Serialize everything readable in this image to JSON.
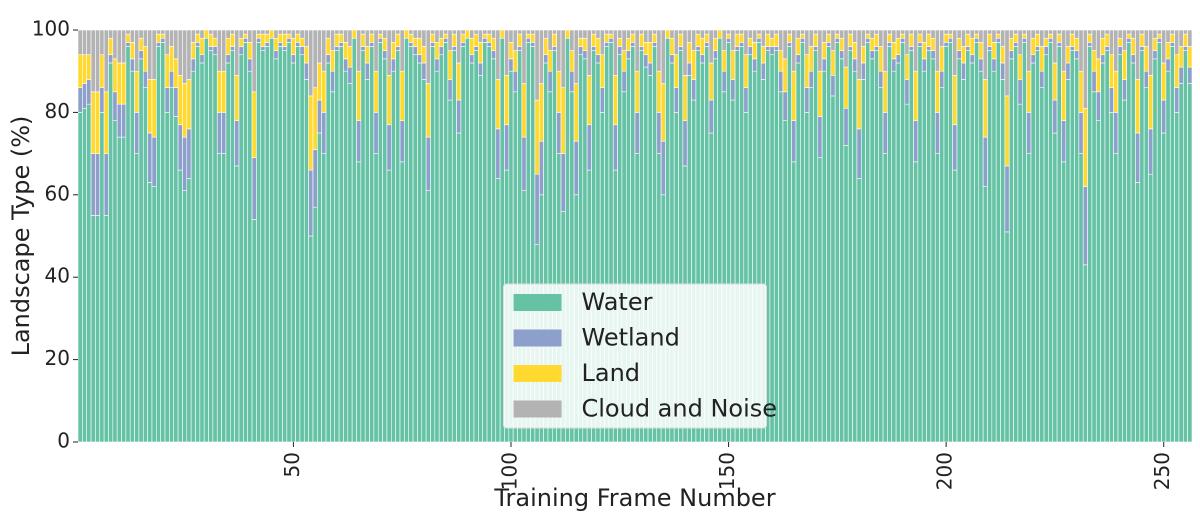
{
  "chart_data": {
    "type": "stacked_bar",
    "xlabel": "Training Frame Number",
    "ylabel": "Landscape Type (%)",
    "x": [
      1,
      2,
      3,
      4,
      5,
      6,
      7,
      8,
      9,
      10,
      11,
      12,
      13,
      14,
      15,
      16,
      17,
      18,
      19,
      20,
      21,
      22,
      23,
      24,
      25,
      26,
      27,
      28,
      29,
      30,
      31,
      32,
      33,
      34,
      35,
      36,
      37,
      38,
      39,
      40,
      41,
      42,
      43,
      44,
      45,
      46,
      47,
      48,
      49,
      50,
      51,
      52,
      53,
      54,
      55,
      56,
      57,
      58,
      59,
      60,
      61,
      62,
      63,
      64,
      65,
      66,
      67,
      68,
      69,
      70,
      71,
      72,
      73,
      74,
      75,
      76,
      77,
      78,
      79,
      80,
      81,
      82,
      83,
      84,
      85,
      86,
      87,
      88,
      89,
      90,
      91,
      92,
      93,
      94,
      95,
      96,
      97,
      98,
      99,
      100,
      101,
      102,
      103,
      104,
      105,
      106,
      107,
      108,
      109,
      110,
      111,
      112,
      113,
      114,
      115,
      116,
      117,
      118,
      119,
      120,
      121,
      122,
      123,
      124,
      125,
      126,
      127,
      128,
      129,
      130,
      131,
      132,
      133,
      134,
      135,
      136,
      137,
      138,
      139,
      140,
      141,
      142,
      143,
      144,
      145,
      146,
      147,
      148,
      149,
      150,
      151,
      152,
      153,
      154,
      155,
      156,
      157,
      158,
      159,
      160,
      161,
      162,
      163,
      164,
      165,
      166,
      167,
      168,
      169,
      170,
      171,
      172,
      173,
      174,
      175,
      176,
      177,
      178,
      179,
      180,
      181,
      182,
      183,
      184,
      185,
      186,
      187,
      188,
      189,
      190,
      191,
      192,
      193,
      194,
      195,
      196,
      197,
      198,
      199,
      200,
      201,
      202,
      203,
      204,
      205,
      206,
      207,
      208,
      209,
      210,
      211,
      212,
      213,
      214,
      215,
      216,
      217,
      218,
      219,
      220,
      221,
      222,
      223,
      224,
      225,
      226,
      227,
      228,
      229,
      230,
      231,
      232,
      233,
      234,
      235,
      236,
      237,
      238,
      239,
      240,
      241,
      242,
      243,
      244,
      245,
      246,
      247,
      248,
      249,
      250,
      251,
      252,
      253,
      254,
      255,
      256
    ],
    "series": [
      {
        "name": "Water",
        "color": "#66c2a5",
        "values": [
          80,
          81,
          82,
          55,
          55,
          80,
          55,
          92,
          78,
          74,
          74,
          96,
          90,
          70,
          93,
          86,
          63,
          62,
          96,
          97,
          80,
          86,
          79,
          66,
          61,
          64,
          90,
          96,
          92,
          98,
          95,
          94,
          70,
          70,
          92,
          95,
          67,
          94,
          97,
          90,
          54,
          97,
          95,
          96,
          98,
          93,
          96,
          95,
          97,
          92,
          96,
          94,
          88,
          50,
          57,
          75,
          70,
          92,
          85,
          95,
          96,
          90,
          87,
          98,
          68,
          95,
          88,
          96,
          70,
          97,
          93,
          66,
          90,
          95,
          68,
          98,
          96,
          94,
          92,
          88,
          61,
          96,
          90,
          94,
          97,
          83,
          95,
          75,
          96,
          98,
          92,
          95,
          89,
          97,
          96,
          93,
          64,
          98,
          66,
          90,
          85,
          95,
          61,
          97,
          96,
          48,
          60,
          92,
          85,
          95,
          70,
          56,
          98,
          85,
          60,
          94,
          93,
          66,
          95,
          92,
          80,
          96,
          97,
          66,
          94,
          85,
          93,
          96,
          70,
          95,
          91,
          89,
          96,
          70,
          60,
          98,
          92,
          80,
          95,
          67,
          89,
          83,
          95,
          92,
          96,
          75,
          93,
          98,
          85,
          97,
          83,
          95,
          96,
          80,
          94,
          90,
          97,
          88,
          95,
          94,
          95,
          85,
          78,
          96,
          68,
          92,
          97,
          80,
          86,
          95,
          69,
          90,
          96,
          84,
          97,
          93,
          72,
          95,
          90,
          64,
          88,
          97,
          93,
          95,
          86,
          70,
          96,
          90,
          92,
          97,
          82,
          95,
          68,
          96,
          90,
          95,
          93,
          70,
          86,
          96,
          97,
          66,
          93,
          88,
          95,
          92,
          97,
          90,
          62,
          95,
          90,
          97,
          88,
          51,
          93,
          96,
          82,
          97,
          70,
          92,
          95,
          86,
          94,
          97,
          75,
          96,
          68,
          88,
          95,
          93,
          70,
          43,
          96,
          85,
          78,
          92,
          95,
          80,
          70,
          94,
          83,
          97,
          92,
          63,
          95,
          86,
          65,
          93,
          97,
          75,
          90,
          96,
          80,
          87,
          95,
          87
        ]
      },
      {
        "name": "Wetland",
        "color": "#8da0cb",
        "values": [
          6,
          6,
          6,
          15,
          15,
          6,
          15,
          2,
          7,
          8,
          8,
          1,
          3,
          10,
          2,
          4,
          12,
          12,
          1,
          1,
          6,
          4,
          7,
          11,
          13,
          12,
          3,
          1,
          2,
          0,
          1,
          2,
          10,
          10,
          2,
          1,
          11,
          2,
          1,
          3,
          15,
          1,
          1,
          1,
          0,
          2,
          1,
          1,
          1,
          2,
          1,
          2,
          4,
          16,
          14,
          8,
          10,
          2,
          5,
          1,
          1,
          3,
          4,
          0,
          10,
          1,
          4,
          1,
          10,
          1,
          2,
          11,
          3,
          1,
          10,
          0,
          1,
          2,
          2,
          4,
          13,
          1,
          3,
          2,
          1,
          5,
          1,
          8,
          1,
          0,
          2,
          1,
          3,
          1,
          1,
          2,
          12,
          0,
          11,
          3,
          5,
          1,
          13,
          1,
          1,
          17,
          13,
          2,
          5,
          1,
          10,
          14,
          0,
          5,
          13,
          2,
          2,
          11,
          1,
          2,
          6,
          1,
          1,
          11,
          2,
          5,
          2,
          1,
          10,
          1,
          3,
          3,
          1,
          10,
          13,
          0,
          2,
          6,
          1,
          11,
          3,
          5,
          1,
          2,
          1,
          8,
          2,
          0,
          5,
          1,
          5,
          1,
          1,
          6,
          2,
          3,
          1,
          4,
          1,
          2,
          1,
          5,
          7,
          1,
          10,
          2,
          1,
          6,
          4,
          1,
          10,
          3,
          1,
          5,
          1,
          2,
          9,
          1,
          3,
          12,
          4,
          1,
          2,
          1,
          4,
          10,
          1,
          3,
          2,
          1,
          6,
          1,
          10,
          1,
          3,
          1,
          2,
          10,
          4,
          1,
          1,
          11,
          2,
          4,
          1,
          2,
          1,
          3,
          12,
          1,
          3,
          1,
          4,
          16,
          2,
          1,
          6,
          1,
          10,
          2,
          1,
          4,
          2,
          1,
          8,
          1,
          10,
          4,
          1,
          2,
          10,
          19,
          1,
          5,
          7,
          2,
          1,
          6,
          10,
          2,
          5,
          1,
          2,
          12,
          1,
          4,
          11,
          2,
          1,
          8,
          3,
          1,
          6,
          4,
          1,
          4
        ]
      },
      {
        "name": "Land",
        "color": "#ffd92f",
        "values": [
          8,
          7,
          6,
          15,
          15,
          8,
          15,
          4,
          8,
          10,
          10,
          2,
          4,
          10,
          3,
          6,
          13,
          14,
          2,
          1,
          8,
          6,
          7,
          12,
          13,
          12,
          4,
          2,
          4,
          2,
          3,
          2,
          10,
          10,
          4,
          3,
          11,
          2,
          1,
          4,
          16,
          1,
          3,
          2,
          2,
          3,
          2,
          3,
          1,
          4,
          2,
          2,
          4,
          18,
          15,
          9,
          10,
          4,
          5,
          3,
          2,
          4,
          5,
          2,
          12,
          3,
          4,
          2,
          10,
          1,
          3,
          12,
          4,
          3,
          12,
          2,
          2,
          2,
          4,
          4,
          13,
          2,
          4,
          2,
          1,
          7,
          3,
          9,
          2,
          2,
          4,
          3,
          5,
          1,
          2,
          3,
          12,
          2,
          12,
          4,
          5,
          3,
          13,
          1,
          2,
          18,
          14,
          4,
          5,
          3,
          10,
          16,
          2,
          5,
          14,
          2,
          3,
          12,
          3,
          4,
          8,
          2,
          1,
          12,
          2,
          5,
          3,
          2,
          10,
          3,
          3,
          5,
          2,
          10,
          14,
          2,
          4,
          8,
          3,
          11,
          5,
          7,
          3,
          4,
          2,
          9,
          3,
          2,
          5,
          1,
          7,
          3,
          2,
          8,
          2,
          4,
          1,
          4,
          3,
          2,
          3,
          5,
          8,
          2,
          12,
          4,
          1,
          8,
          6,
          3,
          11,
          4,
          2,
          6,
          1,
          3,
          10,
          3,
          4,
          12,
          4,
          1,
          3,
          3,
          6,
          10,
          2,
          4,
          4,
          1,
          6,
          3,
          12,
          2,
          4,
          3,
          3,
          10,
          6,
          2,
          1,
          12,
          3,
          4,
          3,
          4,
          1,
          4,
          14,
          3,
          4,
          1,
          4,
          17,
          3,
          2,
          6,
          1,
          10,
          4,
          3,
          6,
          2,
          1,
          9,
          2,
          12,
          4,
          3,
          3,
          10,
          19,
          2,
          5,
          8,
          4,
          3,
          8,
          10,
          2,
          7,
          1,
          4,
          13,
          3,
          6,
          13,
          3,
          1,
          9,
          4,
          2,
          8,
          5,
          3,
          5
        ]
      },
      {
        "name": "Cloud and Noise",
        "color": "#b3b3b3",
        "values": [
          6,
          6,
          6,
          15,
          15,
          6,
          15,
          2,
          7,
          8,
          8,
          1,
          3,
          10,
          2,
          4,
          12,
          12,
          1,
          1,
          6,
          4,
          7,
          11,
          13,
          12,
          3,
          1,
          2,
          0,
          1,
          2,
          10,
          10,
          2,
          1,
          11,
          2,
          1,
          3,
          15,
          1,
          1,
          1,
          0,
          2,
          1,
          1,
          1,
          2,
          1,
          2,
          4,
          16,
          14,
          8,
          10,
          2,
          5,
          1,
          1,
          3,
          4,
          0,
          10,
          1,
          4,
          1,
          10,
          1,
          2,
          11,
          3,
          1,
          10,
          0,
          1,
          2,
          2,
          4,
          13,
          1,
          3,
          2,
          1,
          5,
          1,
          8,
          1,
          0,
          2,
          1,
          3,
          1,
          1,
          2,
          12,
          0,
          11,
          3,
          5,
          1,
          13,
          1,
          1,
          17,
          13,
          2,
          5,
          1,
          10,
          14,
          0,
          5,
          13,
          2,
          2,
          11,
          1,
          2,
          6,
          1,
          1,
          11,
          2,
          5,
          2,
          1,
          10,
          1,
          3,
          3,
          1,
          10,
          13,
          0,
          2,
          6,
          1,
          11,
          3,
          5,
          1,
          2,
          1,
          8,
          2,
          0,
          5,
          1,
          5,
          1,
          1,
          6,
          2,
          3,
          1,
          4,
          1,
          2,
          1,
          5,
          7,
          1,
          10,
          2,
          1,
          6,
          4,
          1,
          10,
          3,
          1,
          5,
          1,
          2,
          9,
          1,
          3,
          12,
          4,
          1,
          2,
          1,
          4,
          10,
          1,
          3,
          2,
          1,
          6,
          1,
          10,
          1,
          3,
          1,
          2,
          10,
          4,
          1,
          1,
          11,
          2,
          4,
          1,
          2,
          1,
          3,
          12,
          1,
          3,
          1,
          4,
          16,
          2,
          1,
          6,
          1,
          10,
          2,
          1,
          4,
          2,
          1,
          8,
          1,
          10,
          4,
          1,
          2,
          10,
          19,
          1,
          5,
          7,
          2,
          1,
          6,
          10,
          2,
          5,
          1,
          2,
          12,
          1,
          4,
          11,
          2,
          1,
          8,
          3,
          1,
          6,
          4,
          1,
          4
        ]
      }
    ],
    "xlim": [
      0.5,
      256.5
    ],
    "xticks": [
      50,
      100,
      150,
      200,
      250
    ],
    "ylim": [
      0,
      100
    ],
    "yticks": [
      0,
      20,
      40,
      60,
      80,
      100
    ],
    "legend": "lower center"
  }
}
